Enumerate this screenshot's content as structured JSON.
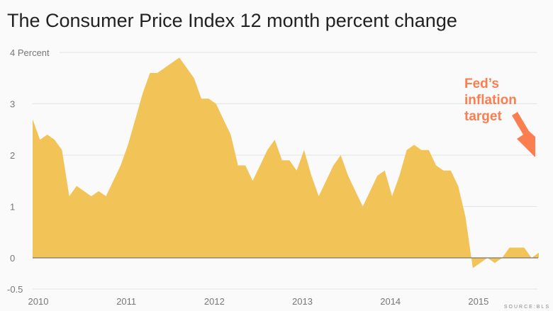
{
  "chart_data": {
    "type": "area",
    "title": "The Consumer Price Index 12 month percent change",
    "ylabel": "Percent",
    "ylim": [
      -0.5,
      4
    ],
    "yticks": [
      4,
      3,
      2,
      1,
      0,
      -0.5
    ],
    "xticks": [
      "2010",
      "2011",
      "2012",
      "2013",
      "2014",
      "2015"
    ],
    "x_start": "2010-01",
    "x_end": "2015-10",
    "frequency": "monthly",
    "values": [
      2.7,
      2.3,
      2.4,
      2.3,
      2.1,
      1.2,
      1.4,
      1.3,
      1.2,
      1.3,
      1.2,
      1.5,
      1.8,
      2.2,
      2.7,
      3.2,
      3.6,
      3.6,
      3.7,
      3.8,
      3.9,
      3.7,
      3.5,
      3.1,
      3.1,
      3.0,
      2.7,
      2.4,
      1.8,
      1.8,
      1.5,
      1.8,
      2.1,
      2.3,
      1.9,
      1.9,
      1.7,
      2.1,
      1.6,
      1.2,
      1.5,
      1.8,
      2.0,
      1.6,
      1.3,
      1.0,
      1.3,
      1.6,
      1.7,
      1.2,
      1.6,
      2.1,
      2.2,
      2.1,
      2.1,
      1.8,
      1.7,
      1.7,
      1.4,
      0.8,
      -0.2,
      -0.1,
      0.0,
      -0.1,
      0.0,
      0.2,
      0.2,
      0.2,
      0.0,
      0.1
    ],
    "fill_color": "#f2c357",
    "annotation": {
      "lines": [
        "Fed’s",
        "inflation",
        "target"
      ],
      "value": 2,
      "color": "#fa7e4f"
    },
    "source": "SOURCE:BLS"
  }
}
